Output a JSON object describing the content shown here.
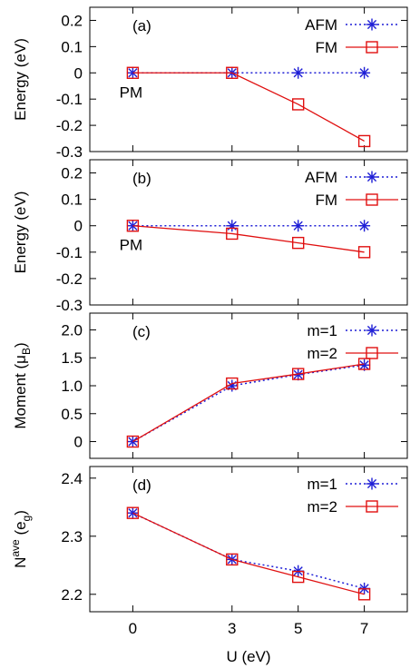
{
  "chart_data": [
    {
      "type": "line",
      "panel_label": "(a)",
      "ylabel": "Energy (eV)",
      "ylim": [
        -0.3,
        0.25
      ],
      "yticks": [
        0.2,
        0.1,
        0,
        -0.1,
        -0.2,
        -0.3
      ],
      "ytick_labels": [
        "0.2",
        "0.1",
        "0",
        "-0.1",
        "-0.2",
        "-0.3"
      ],
      "x": [
        0,
        3,
        5,
        7
      ],
      "annotation": "PM",
      "legend_position": "top-right",
      "series": [
        {
          "name": "AFM",
          "marker": "asterisk",
          "line": "dotted",
          "color": "#1f1fd6",
          "values": [
            0,
            0,
            0,
            0
          ]
        },
        {
          "name": "FM",
          "marker": "open-square",
          "line": "solid",
          "color": "#e01010",
          "values": [
            0,
            0,
            -0.12,
            -0.26
          ]
        }
      ]
    },
    {
      "type": "line",
      "panel_label": "(b)",
      "ylabel": "Energy (eV)",
      "ylim": [
        -0.3,
        0.25
      ],
      "yticks": [
        0.2,
        0.1,
        0,
        -0.1,
        -0.2,
        -0.3
      ],
      "ytick_labels": [
        "0.2",
        "0.1",
        "0",
        "-0.1",
        "-0.2",
        "-0.3"
      ],
      "x": [
        0,
        3,
        5,
        7
      ],
      "annotation": "PM",
      "legend_position": "top-right",
      "series": [
        {
          "name": "AFM",
          "marker": "asterisk",
          "line": "dotted",
          "color": "#1f1fd6",
          "values": [
            0,
            0,
            0,
            0
          ]
        },
        {
          "name": "FM",
          "marker": "open-square",
          "line": "solid",
          "color": "#e01010",
          "values": [
            0,
            -0.03,
            -0.065,
            -0.1
          ]
        }
      ]
    },
    {
      "type": "line",
      "panel_label": "(c)",
      "ylabel": "Moment (μB)",
      "ylabel_parts": {
        "main": "Moment (μ",
        "sub": "B",
        "tail": ")"
      },
      "ylim": [
        -0.3,
        2.3
      ],
      "yticks": [
        2.0,
        1.5,
        1.0,
        0.5,
        0
      ],
      "ytick_labels": [
        "2.0",
        "1.5",
        "1.0",
        "0.5",
        "0"
      ],
      "x": [
        0,
        3,
        5,
        7
      ],
      "legend_position": "top-right",
      "series": [
        {
          "name": "m=1",
          "marker": "asterisk",
          "line": "dotted",
          "color": "#1f1fd6",
          "values": [
            0,
            1.0,
            1.2,
            1.37
          ]
        },
        {
          "name": "m=2",
          "marker": "open-square",
          "line": "solid",
          "color": "#e01010",
          "values": [
            0,
            1.04,
            1.21,
            1.39
          ]
        }
      ]
    },
    {
      "type": "line",
      "panel_label": "(d)",
      "ylabel": "Nave (eg)",
      "ylabel_parts": {
        "main": "N",
        "sup": "ave",
        "mid": " (e",
        "sub": "g",
        "tail": ")"
      },
      "ylim": [
        2.17,
        2.42
      ],
      "yticks": [
        2.4,
        2.3,
        2.2
      ],
      "ytick_labels": [
        "2.4",
        "2.3",
        "2.2"
      ],
      "x": [
        0,
        3,
        5,
        7
      ],
      "xlabel": "U (eV)",
      "xticks": [
        0,
        3,
        5,
        7
      ],
      "xtick_labels": [
        "0",
        "3",
        "5",
        "7"
      ],
      "legend_position": "top-right",
      "series": [
        {
          "name": "m=1",
          "marker": "asterisk",
          "line": "dotted",
          "color": "#1f1fd6",
          "values": [
            2.34,
            2.26,
            2.24,
            2.21
          ]
        },
        {
          "name": "m=2",
          "marker": "open-square",
          "line": "solid",
          "color": "#e01010",
          "values": [
            2.34,
            2.26,
            2.23,
            2.2
          ]
        }
      ]
    }
  ]
}
